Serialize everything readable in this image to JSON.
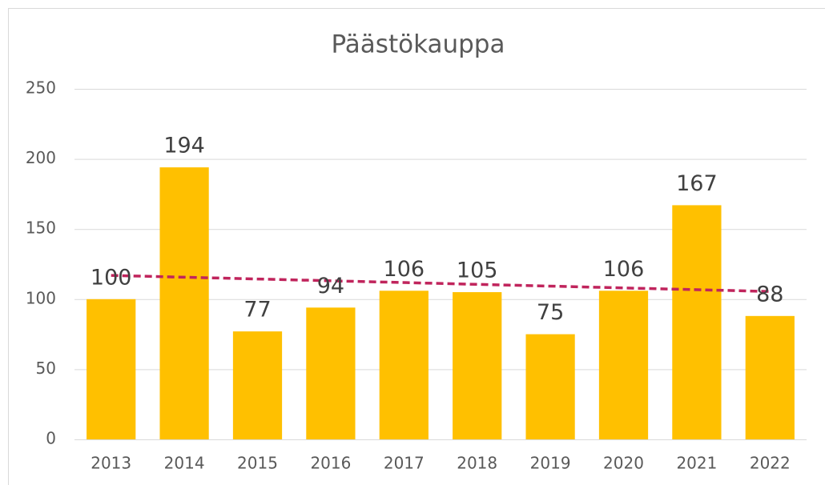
{
  "chart_data": {
    "type": "bar",
    "title": "Päästökauppa",
    "categories": [
      "2013",
      "2014",
      "2015",
      "2016",
      "2017",
      "2018",
      "2019",
      "2020",
      "2021",
      "2022"
    ],
    "values": [
      100,
      194,
      77,
      94,
      106,
      105,
      75,
      106,
      167,
      88
    ],
    "color": "#ffc000",
    "ylim": [
      0,
      250
    ],
    "yticks": [
      0,
      50,
      100,
      150,
      200,
      250
    ],
    "grid": true,
    "trendline": {
      "kind": "linear",
      "color": "#c0245c"
    }
  }
}
